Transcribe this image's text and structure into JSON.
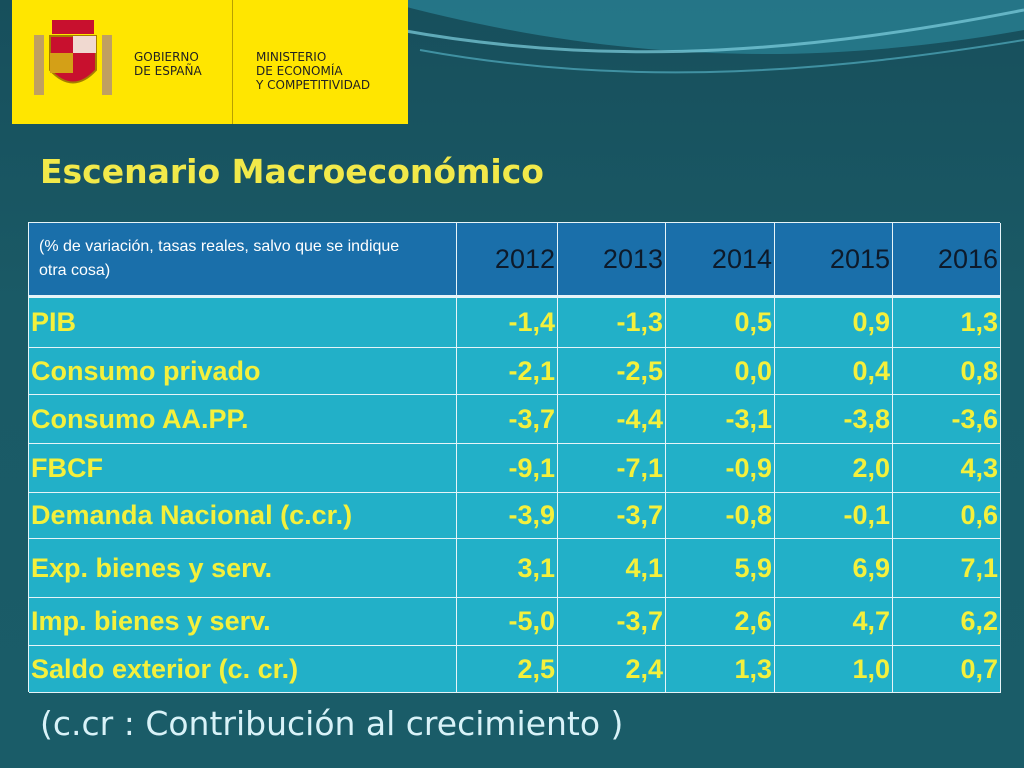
{
  "header": {
    "logo_left": [
      "GOBIERNO",
      "DE ESPAÑA"
    ],
    "logo_right": [
      "MINISTERIO",
      "DE ECONOMÍA",
      "Y COMPETITIVIDAD"
    ]
  },
  "title": "Escenario Macroeconómico",
  "table": {
    "note": "(% de variación, tasas reales,  salvo que se indique otra cosa)",
    "columns": [
      "2012",
      "2013",
      "2014",
      "2015",
      "2016"
    ],
    "rows": [
      [
        "PIB",
        "-1,4",
        "-1,3",
        "0,5",
        "0,9",
        "1,3"
      ],
      [
        "Consumo privado",
        "-2,1",
        "-2,5",
        "0,0",
        "0,4",
        "0,8"
      ],
      [
        "Consumo  AA.PP.",
        "-3,7",
        "-4,4",
        "-3,1",
        "-3,8",
        "-3,6"
      ],
      [
        "FBCF",
        "-9,1",
        "-7,1",
        "-0,9",
        "2,0",
        "4,3"
      ],
      [
        "Demanda Nacional  (c.cr.)",
        "-3,9",
        "-3,7",
        "-0,8",
        "-0,1",
        "0,6"
      ],
      [
        "Exp.  bienes y  serv.",
        "3,1",
        "4,1",
        "5,9",
        "6,9",
        "7,1"
      ],
      [
        "Imp.  bienes y serv.",
        "-5,0",
        "-3,7",
        "2,6",
        "4,7",
        "6,2"
      ],
      [
        "Saldo exterior  (c. cr.)",
        "2,5",
        "2,4",
        "1,3",
        "1,0",
        "0,7"
      ]
    ]
  },
  "footnote": "(c.cr : Contribución al crecimiento )"
}
